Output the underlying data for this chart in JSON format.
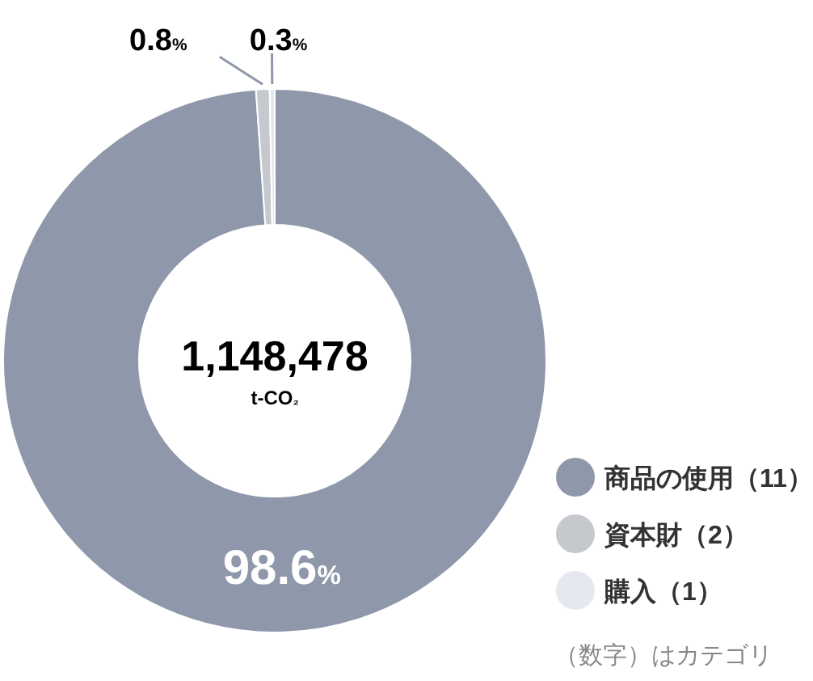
{
  "chart_data": {
    "type": "donut",
    "categories": [
      "商品の使用（11）",
      "資本財（2）",
      "購入（1）"
    ],
    "values": [
      98.6,
      0.8,
      0.3
    ],
    "colors": [
      "#8e98aa",
      "#c5c8cd",
      "#e4e8ef"
    ],
    "value_labels": [
      "98.6%",
      "0.8%",
      "0.3%"
    ],
    "annotations": [
      "1,148,478",
      "t-CO₂",
      "（数字）はカテゴリ"
    ],
    "legend": "bottom right"
  }
}
